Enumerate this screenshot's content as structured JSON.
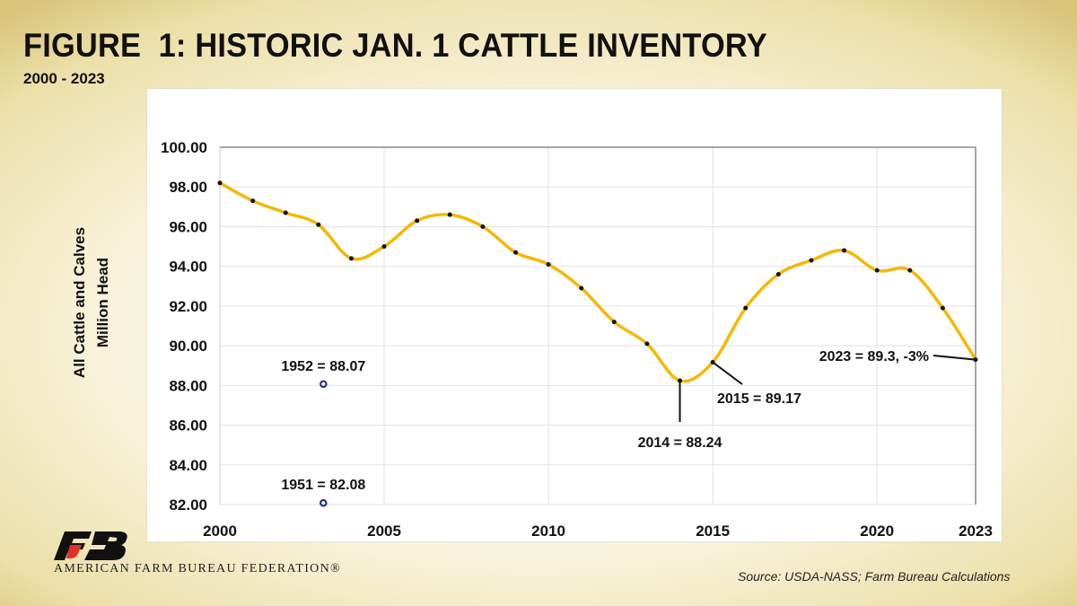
{
  "title": "FIGURE  1: HISTORIC JAN. 1 CATTLE INVENTORY",
  "subtitle": "2000 - 2023",
  "source": "Source: USDA-NASS; Farm Bureau Calculations",
  "logo": {
    "text": "AMERICAN FARM BUREAU FEDERATION®",
    "mark": "FB"
  },
  "chart_data": {
    "type": "line",
    "title": "FIGURE  1: HISTORIC JAN. 1 CATTLE INVENTORY",
    "subtitle": "2000 - 2023",
    "ylabel": [
      "All Cattle and Calves",
      "Million Head"
    ],
    "xlabel": "",
    "xlim": [
      2000,
      2023
    ],
    "ylim": [
      82,
      100
    ],
    "x_ticks": [
      "2000",
      "2005",
      "2010",
      "2015",
      "2020",
      "2023"
    ],
    "y_ticks": [
      "82.00",
      "84.00",
      "86.00",
      "88.00",
      "90.00",
      "92.00",
      "94.00",
      "96.00",
      "98.00",
      "100.00"
    ],
    "grid": true,
    "line_color": "#f5b800",
    "series": [
      {
        "x": [
          2000,
          2001,
          2002,
          2003,
          2004,
          2005,
          2006,
          2007,
          2008,
          2009,
          2010,
          2011,
          2012,
          2013,
          2014,
          2015,
          2016,
          2017,
          2018,
          2019,
          2020,
          2021,
          2022,
          2023
        ],
        "values": [
          98.2,
          97.3,
          96.7,
          96.1,
          94.4,
          95.0,
          96.3,
          96.6,
          96.0,
          94.7,
          94.1,
          92.9,
          91.2,
          90.1,
          88.24,
          89.17,
          91.9,
          93.6,
          94.3,
          94.8,
          93.8,
          93.8,
          91.9,
          89.3
        ]
      }
    ],
    "reference_points": [
      {
        "label": "1952 = 88.07",
        "value": 88.07,
        "color": "#2a2e8c"
      },
      {
        "label": "1951 = 82.08",
        "value": 82.08,
        "color": "#2a2e8c"
      }
    ],
    "annotations": [
      {
        "x": 2014,
        "label": "2014 = 88.24"
      },
      {
        "x": 2015,
        "label": "2015 = 89.17"
      },
      {
        "x": 2023,
        "label": "2023 = 89.3, -3%"
      }
    ]
  }
}
